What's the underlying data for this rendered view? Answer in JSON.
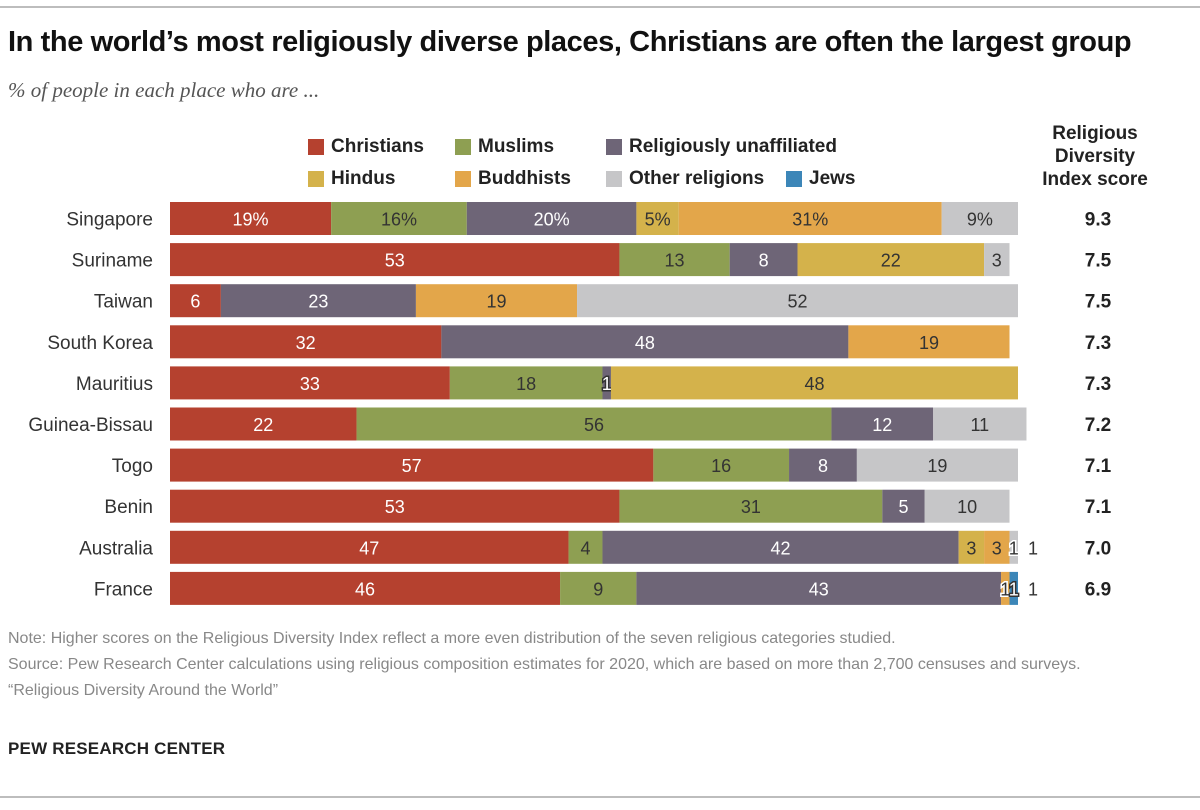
{
  "title": "In the world’s most religiously diverse places, Christians are often the largest group",
  "subtitle": "% of people in each place who are ...",
  "legend": [
    {
      "key": "christians",
      "label": "Christians",
      "color": "#b5412f"
    },
    {
      "key": "muslims",
      "label": "Muslims",
      "color": "#8e9f52"
    },
    {
      "key": "unaffiliated",
      "label": "Religiously unaffiliated",
      "color": "#6e6577"
    },
    {
      "key": "hindus",
      "label": "Hindus",
      "color": "#d4b24b"
    },
    {
      "key": "buddhists",
      "label": "Buddhists",
      "color": "#e3a64a"
    },
    {
      "key": "other",
      "label": "Other religions",
      "color": "#c6c6c8"
    },
    {
      "key": "jews",
      "label": "Jews",
      "color": "#3c86b8"
    }
  ],
  "index_header": "Religious Diversity Index score",
  "chart_data": {
    "type": "bar",
    "orientation": "horizontal",
    "stacked": true,
    "categories": [
      "Singapore",
      "Suriname",
      "Taiwan",
      "South Korea",
      "Mauritius",
      "Guinea-Bissau",
      "Togo",
      "Benin",
      "Australia",
      "France"
    ],
    "series": [
      {
        "name": "Christians",
        "values": [
          19,
          53,
          6,
          32,
          33,
          22,
          57,
          53,
          47,
          46
        ],
        "labels": [
          "19%",
          "53",
          "6",
          "32",
          "33",
          "22",
          "57",
          "53",
          "47",
          "46"
        ]
      },
      {
        "name": "Muslims",
        "values": [
          16,
          13,
          0,
          0,
          18,
          56,
          16,
          31,
          4,
          9
        ],
        "labels": [
          "16%",
          "13",
          "",
          "",
          "18",
          "56",
          "16",
          "31",
          "4",
          "9"
        ]
      },
      {
        "name": "Religiously unaffiliated",
        "values": [
          20,
          8,
          23,
          48,
          1,
          12,
          8,
          5,
          42,
          43
        ],
        "labels": [
          "20%",
          "8",
          "23",
          "48",
          "1",
          "12",
          "8",
          "5",
          "42",
          "43"
        ]
      },
      {
        "name": "Hindus",
        "values": [
          5,
          22,
          0,
          0,
          48,
          0,
          0,
          0,
          3,
          0
        ],
        "labels": [
          "5%",
          "22",
          "",
          "",
          "48",
          "",
          "",
          "",
          "3",
          ""
        ]
      },
      {
        "name": "Buddhists",
        "values": [
          31,
          0,
          19,
          19,
          0,
          0,
          0,
          0,
          3,
          1
        ],
        "labels": [
          "31%",
          "",
          "19",
          "19",
          "",
          "",
          "",
          "",
          "3",
          "1"
        ]
      },
      {
        "name": "Other religions",
        "values": [
          9,
          3,
          52,
          0,
          0,
          11,
          19,
          10,
          1,
          0
        ],
        "labels": [
          "9%",
          "3",
          "52",
          "",
          "",
          "11",
          "19",
          "10",
          "1",
          ""
        ]
      },
      {
        "name": "Jews",
        "values": [
          0,
          0,
          0,
          0,
          0,
          0,
          0,
          0,
          0,
          1
        ],
        "labels": [
          "",
          "",
          "",
          "",
          "",
          "",
          "",
          "",
          "",
          "1"
        ]
      }
    ],
    "diversity_index": [
      "9.3",
      "7.5",
      "7.5",
      "7.3",
      "7.3",
      "7.2",
      "7.1",
      "7.1",
      "7.0",
      "6.9"
    ],
    "xlim": [
      0,
      100
    ],
    "legend_position": "top"
  },
  "notes": {
    "note": "Note: Higher scores on the Religious Diversity Index reflect a more even distribution of the seven religious categories studied.",
    "source": "Source: Pew Research Center calculations using religious composition estimates for 2020, which are based on more than 2,700 censuses and surveys.",
    "report": "“Religious Diversity Around the World”"
  },
  "brand": "PEW RESEARCH CENTER"
}
